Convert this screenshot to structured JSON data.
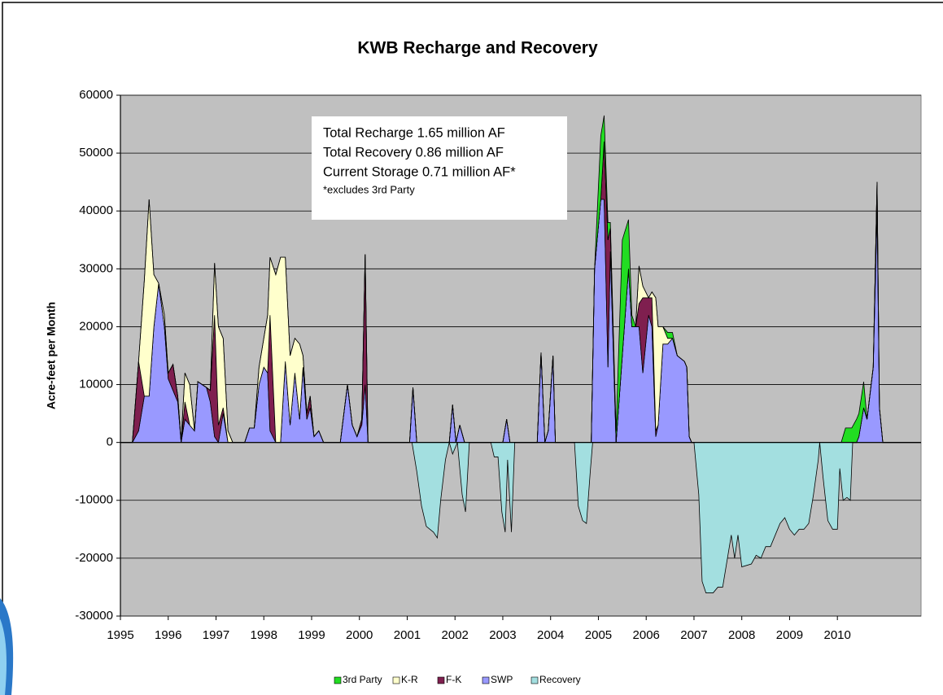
{
  "chart_data": {
    "type": "area",
    "stacked": true,
    "title": "KWB Recharge and Recovery",
    "y_label": "Acre-feet per Month",
    "annotations": [
      "Total Recharge 1.65 million AF",
      "Total Recovery 0.86 million AF",
      "Current Storage 0.71 million AF*",
      "*excludes 3rd Party"
    ],
    "xlim": [
      1995,
      2011.75
    ],
    "xticks": [
      1995,
      1996,
      1997,
      1998,
      1999,
      2000,
      2001,
      2002,
      2003,
      2004,
      2005,
      2006,
      2007,
      2008,
      2009,
      2010
    ],
    "ylim": [
      -30000,
      60000
    ],
    "yticks": [
      -30000,
      -20000,
      -10000,
      0,
      10000,
      20000,
      30000,
      40000,
      50000,
      60000
    ],
    "grid": true,
    "legend": "bottom",
    "x": [
      1995.0,
      1995.25,
      1995.38,
      1995.5,
      1995.6,
      1995.7,
      1995.8,
      1995.92,
      1996.0,
      1996.1,
      1996.2,
      1996.27,
      1996.35,
      1996.45,
      1996.55,
      1996.62,
      1996.8,
      1996.88,
      1996.97,
      1997.05,
      1997.15,
      1997.25,
      1997.35,
      1997.6,
      1997.7,
      1997.8,
      1997.9,
      1998.0,
      1998.08,
      1998.13,
      1998.25,
      1998.35,
      1998.45,
      1998.55,
      1998.65,
      1998.75,
      1998.82,
      1998.9,
      1998.97,
      1999.05,
      1999.15,
      1999.25,
      1999.6,
      1999.75,
      1999.85,
      1999.95,
      2000.05,
      2000.12,
      2000.18,
      2001.05,
      2001.12,
      2001.2,
      2001.88,
      2001.95,
      2002.02,
      2002.1,
      2002.2,
      2003.0,
      2003.08,
      2003.15,
      2003.72,
      2003.8,
      2003.88,
      2003.95,
      2004.05,
      2004.1,
      2004.85,
      2004.92,
      2005.05,
      2005.12,
      2005.2,
      2005.25,
      2005.37,
      2005.5,
      2005.63,
      2005.7,
      2005.78,
      2005.85,
      2005.93,
      2006.05,
      2006.12,
      2006.2,
      2006.25,
      2006.35,
      2006.45,
      2006.55,
      2006.65,
      2006.8,
      2006.85,
      2006.9,
      2006.95,
      2010.08,
      2010.17,
      2010.3,
      2010.4,
      2010.45,
      2010.55,
      2010.62,
      2010.75,
      2010.83,
      2010.88,
      2010.95,
      2011.75
    ],
    "series": [
      {
        "name": "3rd Party",
        "color": "#22dd22",
        "values": [
          0,
          0,
          0,
          0,
          0,
          0,
          0,
          0,
          0,
          0,
          0,
          0,
          0,
          0,
          0,
          0,
          0,
          0,
          0,
          0,
          0,
          0,
          0,
          0,
          0,
          0,
          0,
          0,
          0,
          0,
          0,
          0,
          0,
          0,
          0,
          0,
          0,
          0,
          0,
          0,
          0,
          0,
          0,
          0,
          0,
          0,
          0,
          0,
          0,
          0,
          0,
          0,
          0,
          0,
          0,
          0,
          0,
          0,
          0,
          0,
          0,
          0,
          0,
          0,
          0,
          0,
          0,
          0,
          11000,
          4500,
          3000,
          1000,
          2000,
          20000,
          8500,
          2000,
          0,
          0,
          0,
          0,
          0,
          0,
          0,
          0,
          1000,
          1000,
          0,
          0,
          0,
          0,
          0,
          0,
          2500,
          2500,
          4000,
          4000,
          4500,
          0,
          0,
          0,
          0,
          0,
          0
        ]
      },
      {
        "name": "K-R",
        "color": "#ffffcc",
        "values": [
          0,
          0,
          0,
          20000,
          34000,
          9000,
          0,
          2000,
          0,
          0,
          0,
          0,
          5000,
          7000,
          0,
          0,
          0,
          0,
          9000,
          17000,
          12000,
          2000,
          0,
          0,
          0,
          0,
          3000,
          5000,
          10000,
          10000,
          29000,
          32000,
          18000,
          12000,
          6000,
          13000,
          2000,
          0,
          0,
          0,
          0,
          0,
          0,
          0,
          0,
          0,
          0,
          0,
          0,
          0,
          0,
          0,
          0,
          0,
          0,
          0,
          0,
          0,
          0,
          0,
          0,
          0,
          0,
          0,
          0,
          0,
          0,
          0,
          0,
          0,
          0,
          0,
          0,
          0,
          0,
          0,
          0,
          6500,
          2000,
          0,
          1000,
          23000,
          17000,
          3000,
          1000,
          0,
          0,
          0,
          0,
          0,
          0,
          0,
          0,
          0,
          0,
          0,
          0,
          0,
          0,
          0,
          0,
          0,
          0
        ]
      },
      {
        "name": "F-K",
        "color": "#7f1f4f",
        "values": [
          0,
          0,
          12000,
          0,
          0,
          0,
          0,
          0,
          1000,
          4500,
          1000,
          0,
          3000,
          0,
          0,
          0,
          0,
          2000,
          21000,
          3000,
          1000,
          0,
          0,
          0,
          0,
          0,
          0,
          0,
          0,
          20000,
          0,
          0,
          0,
          0,
          0,
          0,
          0,
          1000,
          2000,
          0,
          0,
          0,
          0,
          0,
          0,
          0,
          1000,
          22500,
          0,
          0,
          0,
          0,
          0,
          0,
          0,
          0,
          0,
          0,
          0,
          0,
          0,
          0,
          0,
          0,
          0,
          0,
          0,
          0,
          0,
          10000,
          22000,
          4000,
          0,
          0,
          0,
          0,
          0,
          4000,
          13000,
          3000,
          5000,
          1000,
          0,
          0,
          0,
          0,
          0,
          0,
          0,
          0,
          0,
          0,
          0,
          0,
          0,
          0,
          0,
          0,
          0,
          5000,
          0,
          0,
          0
        ]
      },
      {
        "name": "SWP",
        "color": "#9999ff",
        "values": [
          0,
          0,
          2000,
          8000,
          8000,
          20000,
          27500,
          20000,
          11000,
          9000,
          7000,
          0,
          4000,
          3000,
          2000,
          10500,
          9500,
          7000,
          1000,
          0,
          5000,
          0,
          0,
          0,
          2500,
          2500,
          10000,
          13000,
          12000,
          2000,
          0,
          0,
          14000,
          3000,
          12000,
          4000,
          13000,
          4000,
          6000,
          1000,
          2000,
          0,
          0,
          10000,
          3000,
          1000,
          3000,
          10000,
          0,
          0,
          9500,
          0,
          0,
          6500,
          0,
          3000,
          0,
          0,
          4000,
          0,
          0,
          15500,
          0,
          2000,
          15000,
          0,
          0,
          30000,
          42000,
          42000,
          13000,
          33000,
          0,
          15000,
          30000,
          20000,
          20000,
          20000,
          12000,
          22000,
          20000,
          1000,
          3000,
          17000,
          17000,
          18000,
          15000,
          14000,
          13000,
          1000,
          0,
          0,
          0,
          0,
          0,
          1000,
          6000,
          4000,
          13000,
          40000,
          6000,
          0,
          0
        ]
      },
      {
        "name": "Recovery",
        "color": "#a3dfe0",
        "stacked": false,
        "x": [
          2001.1,
          2001.2,
          2001.3,
          2001.4,
          2001.55,
          2001.63,
          2001.7,
          2001.8,
          2001.88,
          2001.95,
          2002.05,
          2002.15,
          2002.22,
          2002.3,
          2002.75,
          2002.82,
          2002.9,
          2002.98,
          2003.05,
          2003.1,
          2003.18,
          2003.25,
          2004.5,
          2004.58,
          2004.67,
          2004.75,
          2004.83,
          2004.88,
          2007.0,
          2007.1,
          2007.17,
          2007.25,
          2007.4,
          2007.5,
          2007.6,
          2007.7,
          2007.78,
          2007.85,
          2007.92,
          2008.0,
          2008.2,
          2008.3,
          2008.4,
          2008.5,
          2008.6,
          2008.7,
          2008.8,
          2008.9,
          2009.0,
          2009.1,
          2009.2,
          2009.3,
          2009.4,
          2009.5,
          2009.6,
          2009.63,
          2009.7,
          2009.8,
          2009.9,
          2010.0,
          2010.05,
          2010.12,
          2010.2,
          2010.27,
          2010.32
        ],
        "values": [
          0,
          -5000,
          -11000,
          -14500,
          -15500,
          -16500,
          -10000,
          -3000,
          0,
          -2000,
          0,
          -9000,
          -12000,
          0,
          0,
          -2500,
          -2500,
          -12000,
          -15500,
          -3000,
          -15500,
          0,
          0,
          -11000,
          -13500,
          -14000,
          -5000,
          0,
          0,
          -9000,
          -24000,
          -26000,
          -26000,
          -25000,
          -25000,
          -20000,
          -16000,
          -20000,
          -16000,
          -21500,
          -21000,
          -19500,
          -20000,
          -18000,
          -18000,
          -16000,
          -14000,
          -13000,
          -15000,
          -16000,
          -15000,
          -15000,
          -14000,
          -9000,
          -3000,
          0,
          -6000,
          -13500,
          -15000,
          -15000,
          -4500,
          -10000,
          -9500,
          -10000,
          0
        ]
      }
    ]
  }
}
